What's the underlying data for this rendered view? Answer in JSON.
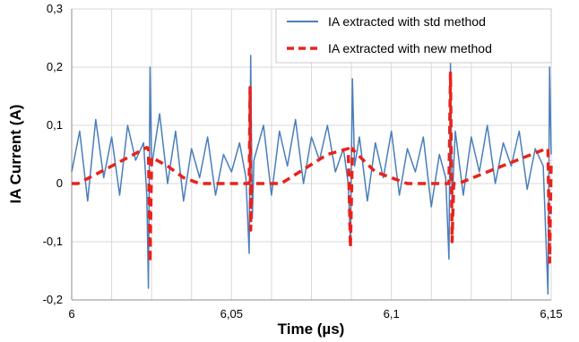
{
  "chart_data": {
    "type": "line",
    "xlabel": "Time (µs)",
    "ylabel": "IA Current (A)",
    "xlim": [
      6.0,
      6.15
    ],
    "ylim": [
      -0.2,
      0.3
    ],
    "x_ticks": [
      6.0,
      6.05,
      6.1,
      6.15
    ],
    "x_tick_labels": [
      "6",
      "6,05",
      "6,1",
      "6,15"
    ],
    "x_minor_grid": [
      6.0125,
      6.025,
      6.0375,
      6.0625,
      6.075,
      6.0875,
      6.1125,
      6.125,
      6.1375
    ],
    "y_ticks": [
      -0.2,
      -0.1,
      0,
      0.1,
      0.2,
      0.3
    ],
    "y_tick_labels": [
      "-0,2",
      "-0,1",
      "0",
      "0,1",
      "0,2",
      "0,3"
    ],
    "grid": true,
    "legend_position": "top-right",
    "series": [
      {
        "name": "IA extracted with std method",
        "color": "#4a7ebb",
        "style": "solid",
        "x": [
          6.0,
          6.0025,
          6.005,
          6.0075,
          6.01,
          6.0125,
          6.015,
          6.0175,
          6.02,
          6.0225,
          6.0235,
          6.024,
          6.0245,
          6.025,
          6.0275,
          6.03,
          6.0325,
          6.035,
          6.0375,
          6.04,
          6.0425,
          6.045,
          6.0475,
          6.05,
          6.0525,
          6.0545,
          6.0555,
          6.056,
          6.0565,
          6.057,
          6.06,
          6.0625,
          6.065,
          6.0675,
          6.07,
          6.0725,
          6.075,
          6.0775,
          6.08,
          6.0825,
          6.085,
          6.0865,
          6.0872,
          6.0878,
          6.0885,
          6.09,
          6.0925,
          6.095,
          6.0975,
          6.1,
          6.1025,
          6.105,
          6.1075,
          6.11,
          6.1125,
          6.115,
          6.117,
          6.118,
          6.1185,
          6.119,
          6.1195,
          6.12,
          6.1225,
          6.125,
          6.1275,
          6.13,
          6.1325,
          6.135,
          6.1375,
          6.14,
          6.1425,
          6.145,
          6.1475,
          6.149,
          6.1495,
          6.15
        ],
        "y": [
          0.02,
          0.09,
          -0.03,
          0.11,
          0.01,
          0.08,
          -0.02,
          0.1,
          0.04,
          0.07,
          -0.02,
          -0.18,
          0.2,
          0.03,
          0.12,
          0.0,
          0.09,
          -0.03,
          0.06,
          0.01,
          0.08,
          -0.02,
          0.05,
          0.02,
          0.07,
          0.01,
          -0.12,
          0.22,
          -0.06,
          0.04,
          0.1,
          -0.02,
          0.09,
          0.03,
          0.11,
          0.0,
          0.08,
          0.04,
          0.1,
          0.02,
          0.06,
          0.0,
          -0.1,
          0.18,
          0.03,
          0.08,
          -0.03,
          0.07,
          0.01,
          0.09,
          -0.02,
          0.06,
          0.02,
          0.08,
          -0.04,
          0.05,
          0.01,
          -0.13,
          0.21,
          -0.05,
          0.03,
          0.09,
          -0.02,
          0.08,
          0.02,
          0.1,
          0.0,
          0.07,
          0.03,
          0.09,
          -0.01,
          0.06,
          0.03,
          -0.19,
          0.2,
          0.05
        ]
      },
      {
        "name": "IA extracted with new method",
        "color": "#e8231c",
        "style": "dashed",
        "x": [
          6.0,
          6.002,
          6.0125,
          6.0235,
          6.024,
          6.0245,
          6.025,
          6.03,
          6.035,
          6.04,
          6.0475,
          6.05,
          6.0555,
          6.0558,
          6.056,
          6.0563,
          6.0575,
          6.06,
          6.0655,
          6.08,
          6.0865,
          6.0872,
          6.0878,
          6.0885,
          6.095,
          6.105,
          6.112,
          6.118,
          6.1185,
          6.119,
          6.1195,
          6.121,
          6.13,
          6.1485,
          6.149,
          6.1495,
          6.15
        ],
        "y": [
          0.0,
          0.0,
          0.03,
          0.062,
          0.06,
          -0.135,
          0.045,
          0.03,
          0.01,
          0.0,
          0.0,
          0.0,
          0.0,
          0.165,
          -0.08,
          0.0,
          0.0,
          0.0,
          0.0,
          0.05,
          0.06,
          -0.11,
          0.06,
          0.055,
          0.02,
          0.0,
          0.0,
          0.0,
          0.19,
          -0.1,
          0.0,
          0.0,
          0.02,
          0.06,
          0.06,
          -0.135,
          0.04
        ]
      }
    ]
  }
}
